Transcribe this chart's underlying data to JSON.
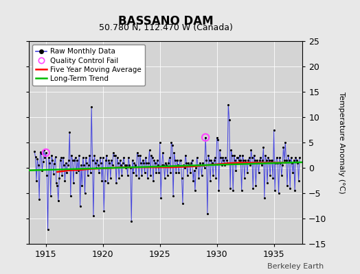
{
  "title": "BASSANO DAM",
  "subtitle": "50.780 N, 112.470 W (Canada)",
  "ylabel": "Temperature Anomaly (°C)",
  "watermark": "Berkeley Earth",
  "xlim": [
    1913.5,
    1937.5
  ],
  "ylim": [
    -15,
    25
  ],
  "yticks": [
    -15,
    -10,
    -5,
    0,
    5,
    10,
    15,
    20,
    25
  ],
  "xticks": [
    1915,
    1920,
    1925,
    1930,
    1935
  ],
  "bg_color": "#e8e8e8",
  "plot_bg_color": "#d4d4d4",
  "raw_color": "#4444dd",
  "dot_color": "#000000",
  "ma_color": "#ff0000",
  "trend_color": "#00bb00",
  "qc_color": "#ff44ff",
  "raw_data": [
    1914.0,
    3.2,
    1914.083,
    2.1,
    1914.167,
    -2.5,
    1914.25,
    1.8,
    1914.333,
    0.5,
    1914.417,
    -6.2,
    1914.5,
    3.1,
    1914.583,
    2.8,
    1914.667,
    -0.5,
    1914.75,
    1.2,
    1914.833,
    3.5,
    1914.917,
    2.0,
    1915.0,
    3.0,
    1915.083,
    -1.5,
    1915.167,
    -12.2,
    1915.25,
    2.0,
    1915.333,
    1.0,
    1915.417,
    -5.5,
    1915.5,
    2.5,
    1915.583,
    1.5,
    1915.667,
    -1.2,
    1915.75,
    0.8,
    1915.833,
    2.2,
    1915.917,
    -3.0,
    1916.0,
    -3.5,
    1916.083,
    -6.5,
    1916.167,
    -2.0,
    1916.25,
    1.5,
    1916.333,
    2.0,
    1916.417,
    -1.5,
    1916.5,
    2.0,
    1916.583,
    0.5,
    1916.667,
    -2.5,
    1916.75,
    1.0,
    1916.833,
    -1.0,
    1916.917,
    0.5,
    1917.0,
    1.5,
    1917.083,
    7.0,
    1917.167,
    -5.5,
    1917.25,
    2.5,
    1917.333,
    1.5,
    1917.417,
    -3.0,
    1917.5,
    1.5,
    1917.583,
    2.0,
    1917.667,
    -1.0,
    1917.75,
    1.5,
    1917.833,
    -0.5,
    1917.917,
    2.5,
    1918.0,
    -7.5,
    1918.083,
    0.5,
    1918.167,
    -3.5,
    1918.25,
    2.0,
    1918.333,
    0.5,
    1918.417,
    -5.0,
    1918.5,
    2.0,
    1918.583,
    1.0,
    1918.667,
    -1.5,
    1918.75,
    0.5,
    1918.833,
    2.5,
    1918.917,
    -1.0,
    1919.0,
    12.0,
    1919.083,
    1.5,
    1919.167,
    -9.5,
    1919.25,
    2.5,
    1919.333,
    1.0,
    1919.417,
    0.0,
    1919.5,
    1.5,
    1919.583,
    0.5,
    1919.667,
    -1.0,
    1919.75,
    2.0,
    1919.833,
    1.0,
    1919.917,
    -2.5,
    1920.0,
    2.0,
    1920.083,
    -8.5,
    1920.167,
    -2.5,
    1920.25,
    1.5,
    1920.333,
    2.5,
    1920.417,
    -3.0,
    1920.5,
    1.5,
    1920.583,
    1.0,
    1920.667,
    -2.0,
    1920.75,
    1.5,
    1920.833,
    0.5,
    1920.917,
    3.0,
    1921.0,
    2.5,
    1921.083,
    2.5,
    1921.167,
    -3.0,
    1921.25,
    2.0,
    1921.333,
    1.0,
    1921.417,
    -2.0,
    1921.5,
    1.5,
    1921.583,
    0.5,
    1921.667,
    -1.5,
    1921.75,
    1.0,
    1921.833,
    2.0,
    1921.917,
    0.5,
    1922.0,
    0.0,
    1922.083,
    0.5,
    1922.167,
    -1.5,
    1922.25,
    2.0,
    1922.333,
    0.5,
    1922.417,
    0.0,
    1922.5,
    -10.5,
    1922.583,
    1.5,
    1922.667,
    -1.0,
    1922.75,
    1.0,
    1922.833,
    0.5,
    1922.917,
    -1.5,
    1923.0,
    3.0,
    1923.083,
    2.5,
    1923.167,
    -2.0,
    1923.25,
    2.5,
    1923.333,
    1.0,
    1923.417,
    -1.5,
    1923.5,
    1.5,
    1923.583,
    1.0,
    1923.667,
    -1.0,
    1923.75,
    2.0,
    1923.833,
    1.0,
    1923.917,
    -2.0,
    1924.0,
    1.0,
    1924.083,
    3.5,
    1924.167,
    -1.5,
    1924.25,
    2.5,
    1924.333,
    2.0,
    1924.417,
    -2.5,
    1924.5,
    1.5,
    1924.583,
    1.0,
    1924.667,
    -1.0,
    1924.75,
    1.5,
    1924.833,
    0.5,
    1924.917,
    -1.0,
    1925.0,
    5.0,
    1925.083,
    -6.0,
    1925.167,
    0.5,
    1925.25,
    3.0,
    1925.333,
    0.5,
    1925.417,
    -2.0,
    1925.5,
    1.0,
    1925.583,
    0.5,
    1925.667,
    -1.5,
    1925.75,
    1.0,
    1925.833,
    2.0,
    1925.917,
    -1.0,
    1926.0,
    5.0,
    1926.083,
    4.5,
    1926.167,
    -5.5,
    1926.25,
    3.0,
    1926.333,
    1.5,
    1926.417,
    -1.0,
    1926.5,
    1.5,
    1926.583,
    0.5,
    1926.667,
    -1.0,
    1926.75,
    1.5,
    1926.833,
    1.5,
    1926.917,
    -2.0,
    1927.0,
    -7.0,
    1927.083,
    0.5,
    1927.167,
    0.0,
    1927.25,
    2.5,
    1927.333,
    1.0,
    1927.417,
    -1.5,
    1927.5,
    1.0,
    1927.583,
    0.5,
    1927.667,
    -1.0,
    1927.75,
    1.0,
    1927.833,
    1.5,
    1927.917,
    -2.5,
    1928.0,
    -0.5,
    1928.083,
    -4.5,
    1928.167,
    0.0,
    1928.25,
    2.0,
    1928.333,
    0.5,
    1928.417,
    -2.0,
    1928.5,
    1.0,
    1928.583,
    0.5,
    1928.667,
    -1.5,
    1928.75,
    1.0,
    1928.833,
    0.5,
    1928.917,
    0.0,
    1929.0,
    6.0,
    1929.083,
    1.5,
    1929.167,
    -9.0,
    1929.25,
    2.5,
    1929.333,
    1.5,
    1929.417,
    -2.5,
    1929.5,
    1.5,
    1929.583,
    1.0,
    1929.667,
    -1.5,
    1929.75,
    1.5,
    1929.833,
    2.0,
    1929.917,
    -2.0,
    1930.0,
    6.0,
    1930.083,
    5.5,
    1930.167,
    -4.5,
    1930.25,
    3.5,
    1930.333,
    2.0,
    1930.417,
    0.5,
    1930.5,
    2.0,
    1930.583,
    1.5,
    1930.667,
    0.5,
    1930.75,
    2.0,
    1930.833,
    1.5,
    1930.917,
    1.0,
    1931.0,
    12.5,
    1931.083,
    9.5,
    1931.167,
    -4.0,
    1931.25,
    3.5,
    1931.333,
    2.5,
    1931.417,
    -4.5,
    1931.5,
    2.5,
    1931.583,
    1.5,
    1931.667,
    -0.5,
    1931.75,
    2.0,
    1931.833,
    2.0,
    1931.917,
    1.5,
    1932.0,
    2.5,
    1932.083,
    1.5,
    1932.167,
    -4.5,
    1932.25,
    2.5,
    1932.333,
    1.5,
    1932.417,
    -2.0,
    1932.5,
    1.5,
    1932.583,
    1.0,
    1932.667,
    -1.0,
    1932.75,
    1.5,
    1932.833,
    2.0,
    1932.917,
    0.5,
    1933.0,
    3.5,
    1933.083,
    2.0,
    1933.167,
    -4.0,
    1933.25,
    2.5,
    1933.333,
    1.5,
    1933.417,
    -3.5,
    1933.5,
    1.5,
    1933.583,
    1.0,
    1933.667,
    -1.0,
    1933.75,
    1.5,
    1933.833,
    2.0,
    1933.917,
    0.5,
    1934.0,
    1.5,
    1934.083,
    4.0,
    1934.167,
    -6.0,
    1934.25,
    2.5,
    1934.333,
    1.5,
    1934.417,
    -3.0,
    1934.5,
    2.0,
    1934.583,
    1.5,
    1934.667,
    -1.5,
    1934.75,
    1.5,
    1934.833,
    1.5,
    1934.917,
    -2.0,
    1935.0,
    7.5,
    1935.083,
    -4.5,
    1935.167,
    1.0,
    1935.25,
    2.0,
    1935.333,
    1.0,
    1935.417,
    -5.0,
    1935.5,
    2.0,
    1935.583,
    1.0,
    1935.667,
    -1.5,
    1935.75,
    0.5,
    1935.833,
    4.0,
    1935.917,
    1.5,
    1936.0,
    5.0,
    1936.083,
    1.5,
    1936.167,
    -3.5,
    1936.25,
    2.5,
    1936.333,
    1.5,
    1936.417,
    -4.0,
    1936.5,
    2.0,
    1936.583,
    1.0,
    1936.667,
    -1.0,
    1936.75,
    1.5,
    1936.833,
    -4.5,
    1936.917,
    2.0,
    1937.0,
    1.5,
    1937.083,
    1.0,
    1937.167,
    -2.5,
    1937.25,
    2.0
  ],
  "qc_fail_points": [
    [
      1915.0,
      3.0
    ],
    [
      1929.0,
      6.0
    ]
  ],
  "ma_x": [
    1916.0,
    1917.0,
    1918.0,
    1919.0,
    1920.0,
    1921.0,
    1922.0,
    1923.0,
    1924.0,
    1925.0,
    1926.0,
    1927.0,
    1928.0,
    1929.0,
    1930.0,
    1931.0,
    1932.0,
    1933.0,
    1934.0,
    1935.0,
    1936.0
  ],
  "ma_y": [
    -0.8,
    -0.5,
    -0.4,
    -0.2,
    -0.1,
    0.0,
    0.1,
    0.1,
    0.1,
    0.1,
    0.1,
    0.2,
    0.3,
    0.5,
    0.7,
    0.9,
    1.0,
    1.0,
    1.0,
    1.0,
    1.0
  ],
  "trend_x": [
    1913.5,
    1937.5
  ],
  "trend_y": [
    -0.5,
    1.1
  ]
}
